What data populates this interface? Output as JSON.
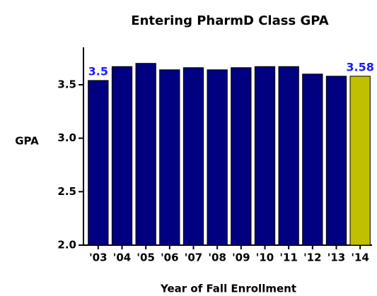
{
  "chart_data": {
    "type": "bar",
    "title": "Entering PharmD Class GPA",
    "xlabel": "Year of Fall Enrollment",
    "ylabel": "GPA",
    "categories": [
      "'03",
      "'04",
      "'05",
      "'06",
      "'07",
      "'08",
      "'09",
      "'10",
      "'11",
      "'12",
      "'13",
      "'14"
    ],
    "values": [
      3.54,
      3.67,
      3.7,
      3.64,
      3.66,
      3.64,
      3.66,
      3.67,
      3.67,
      3.6,
      3.58,
      3.58
    ],
    "value_labels": [
      "3.5",
      null,
      null,
      null,
      null,
      null,
      null,
      null,
      null,
      null,
      null,
      "3.58"
    ],
    "colors": [
      "#000080",
      "#000080",
      "#000080",
      "#000080",
      "#000080",
      "#000080",
      "#000080",
      "#000080",
      "#000080",
      "#000080",
      "#000080",
      "#c0c000"
    ],
    "ylim": [
      2,
      3.85
    ],
    "yticks": [
      {
        "value": 2,
        "label": "2.0"
      },
      {
        "value": 2.5,
        "label": "2.5"
      },
      {
        "value": 3,
        "label": "3.0"
      },
      {
        "value": 3.5,
        "label": "3.5"
      }
    ]
  }
}
